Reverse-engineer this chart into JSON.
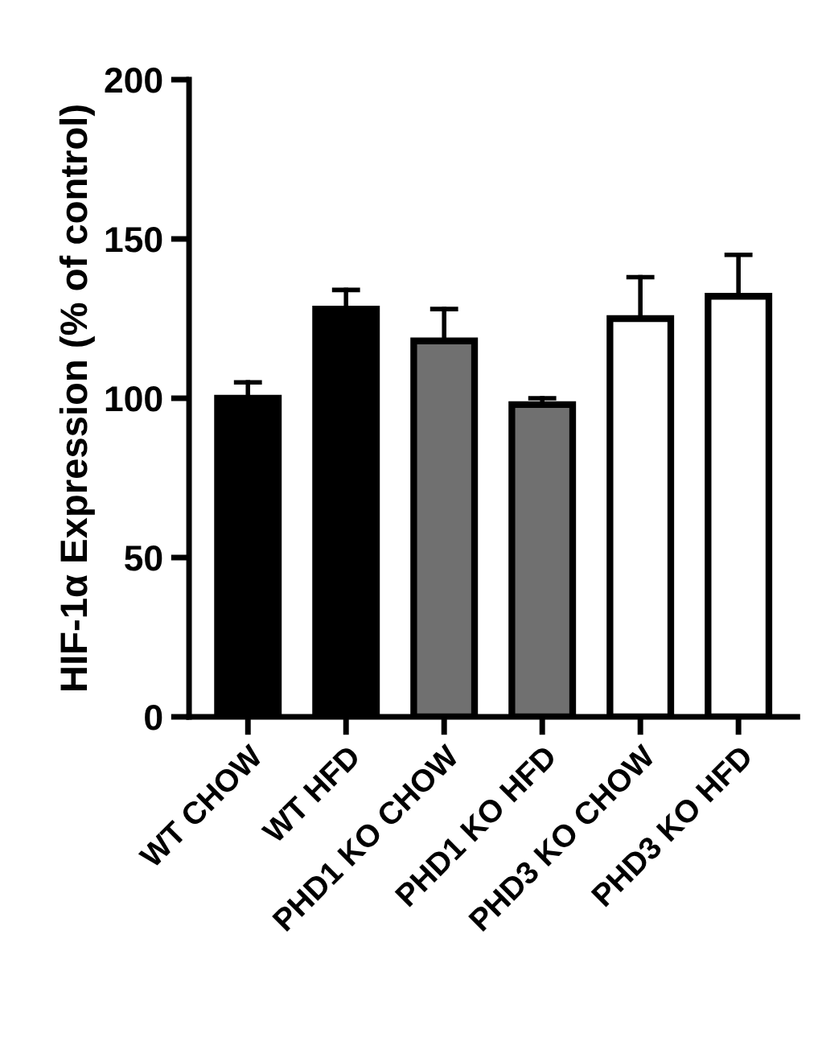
{
  "chart_data": {
    "type": "bar",
    "ylabel": "HIF-1α Expression (% of control)",
    "categories": [
      "WT CHOW",
      "WT HFD",
      "PHD1 KO CHOW",
      "PHD1 KO HFD",
      "PHD3 KO CHOW",
      "PHD3 KO HFD"
    ],
    "values": [
      100,
      128,
      118,
      98,
      125,
      132
    ],
    "errors": [
      [
        100,
        105
      ],
      [
        128,
        134
      ],
      [
        118,
        128
      ],
      [
        98,
        100
      ],
      [
        125,
        138
      ],
      [
        132,
        145
      ]
    ],
    "colors": [
      "#000000",
      "#000000",
      "#707070",
      "#707070",
      "#ffffff",
      "#ffffff"
    ],
    "ylim": [
      0,
      200
    ],
    "yticks": [
      0,
      50,
      100,
      150,
      200
    ],
    "grid": false,
    "legend": false
  }
}
